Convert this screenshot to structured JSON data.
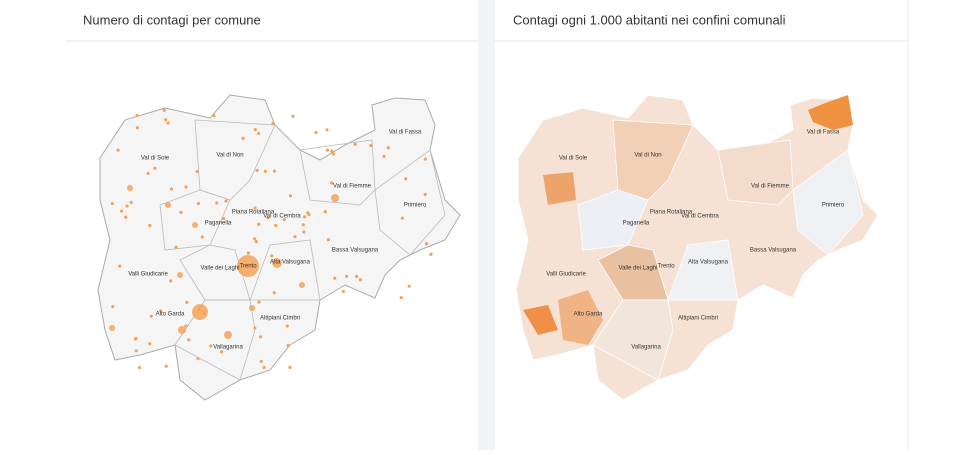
{
  "panels": [
    {
      "title": "Numero di contagi per comune",
      "labels": [
        "Val di Sole",
        "Val di Non",
        "Val di Fassa",
        "Val di Fiemme",
        "Primiero",
        "Piana Rotaliana",
        "Val di Cembra",
        "Paganella",
        "Valle dei Laghi",
        "Trento",
        "Alta Valsugana",
        "Bassa Valsugana",
        "Valli Giudicarie",
        "Alto Garda",
        "Altipiani Cimbri",
        "Vallagarina"
      ]
    },
    {
      "title": "Contagi ogni 1.000 abitanti nei confini comunali",
      "labels": [
        "Val di Sole",
        "Val di Non",
        "Val di Fassa",
        "Val di Fiemme",
        "Primiero",
        "Piana Rotaliana",
        "Val di Cembra",
        "Paganella",
        "Valle dei Laghi",
        "Trento",
        "Alta Valsugana",
        "Bassa Valsugana",
        "Valli Giudicarie",
        "Alto Garda",
        "Altipiani Cimbri",
        "Vallagarina"
      ]
    }
  ]
}
